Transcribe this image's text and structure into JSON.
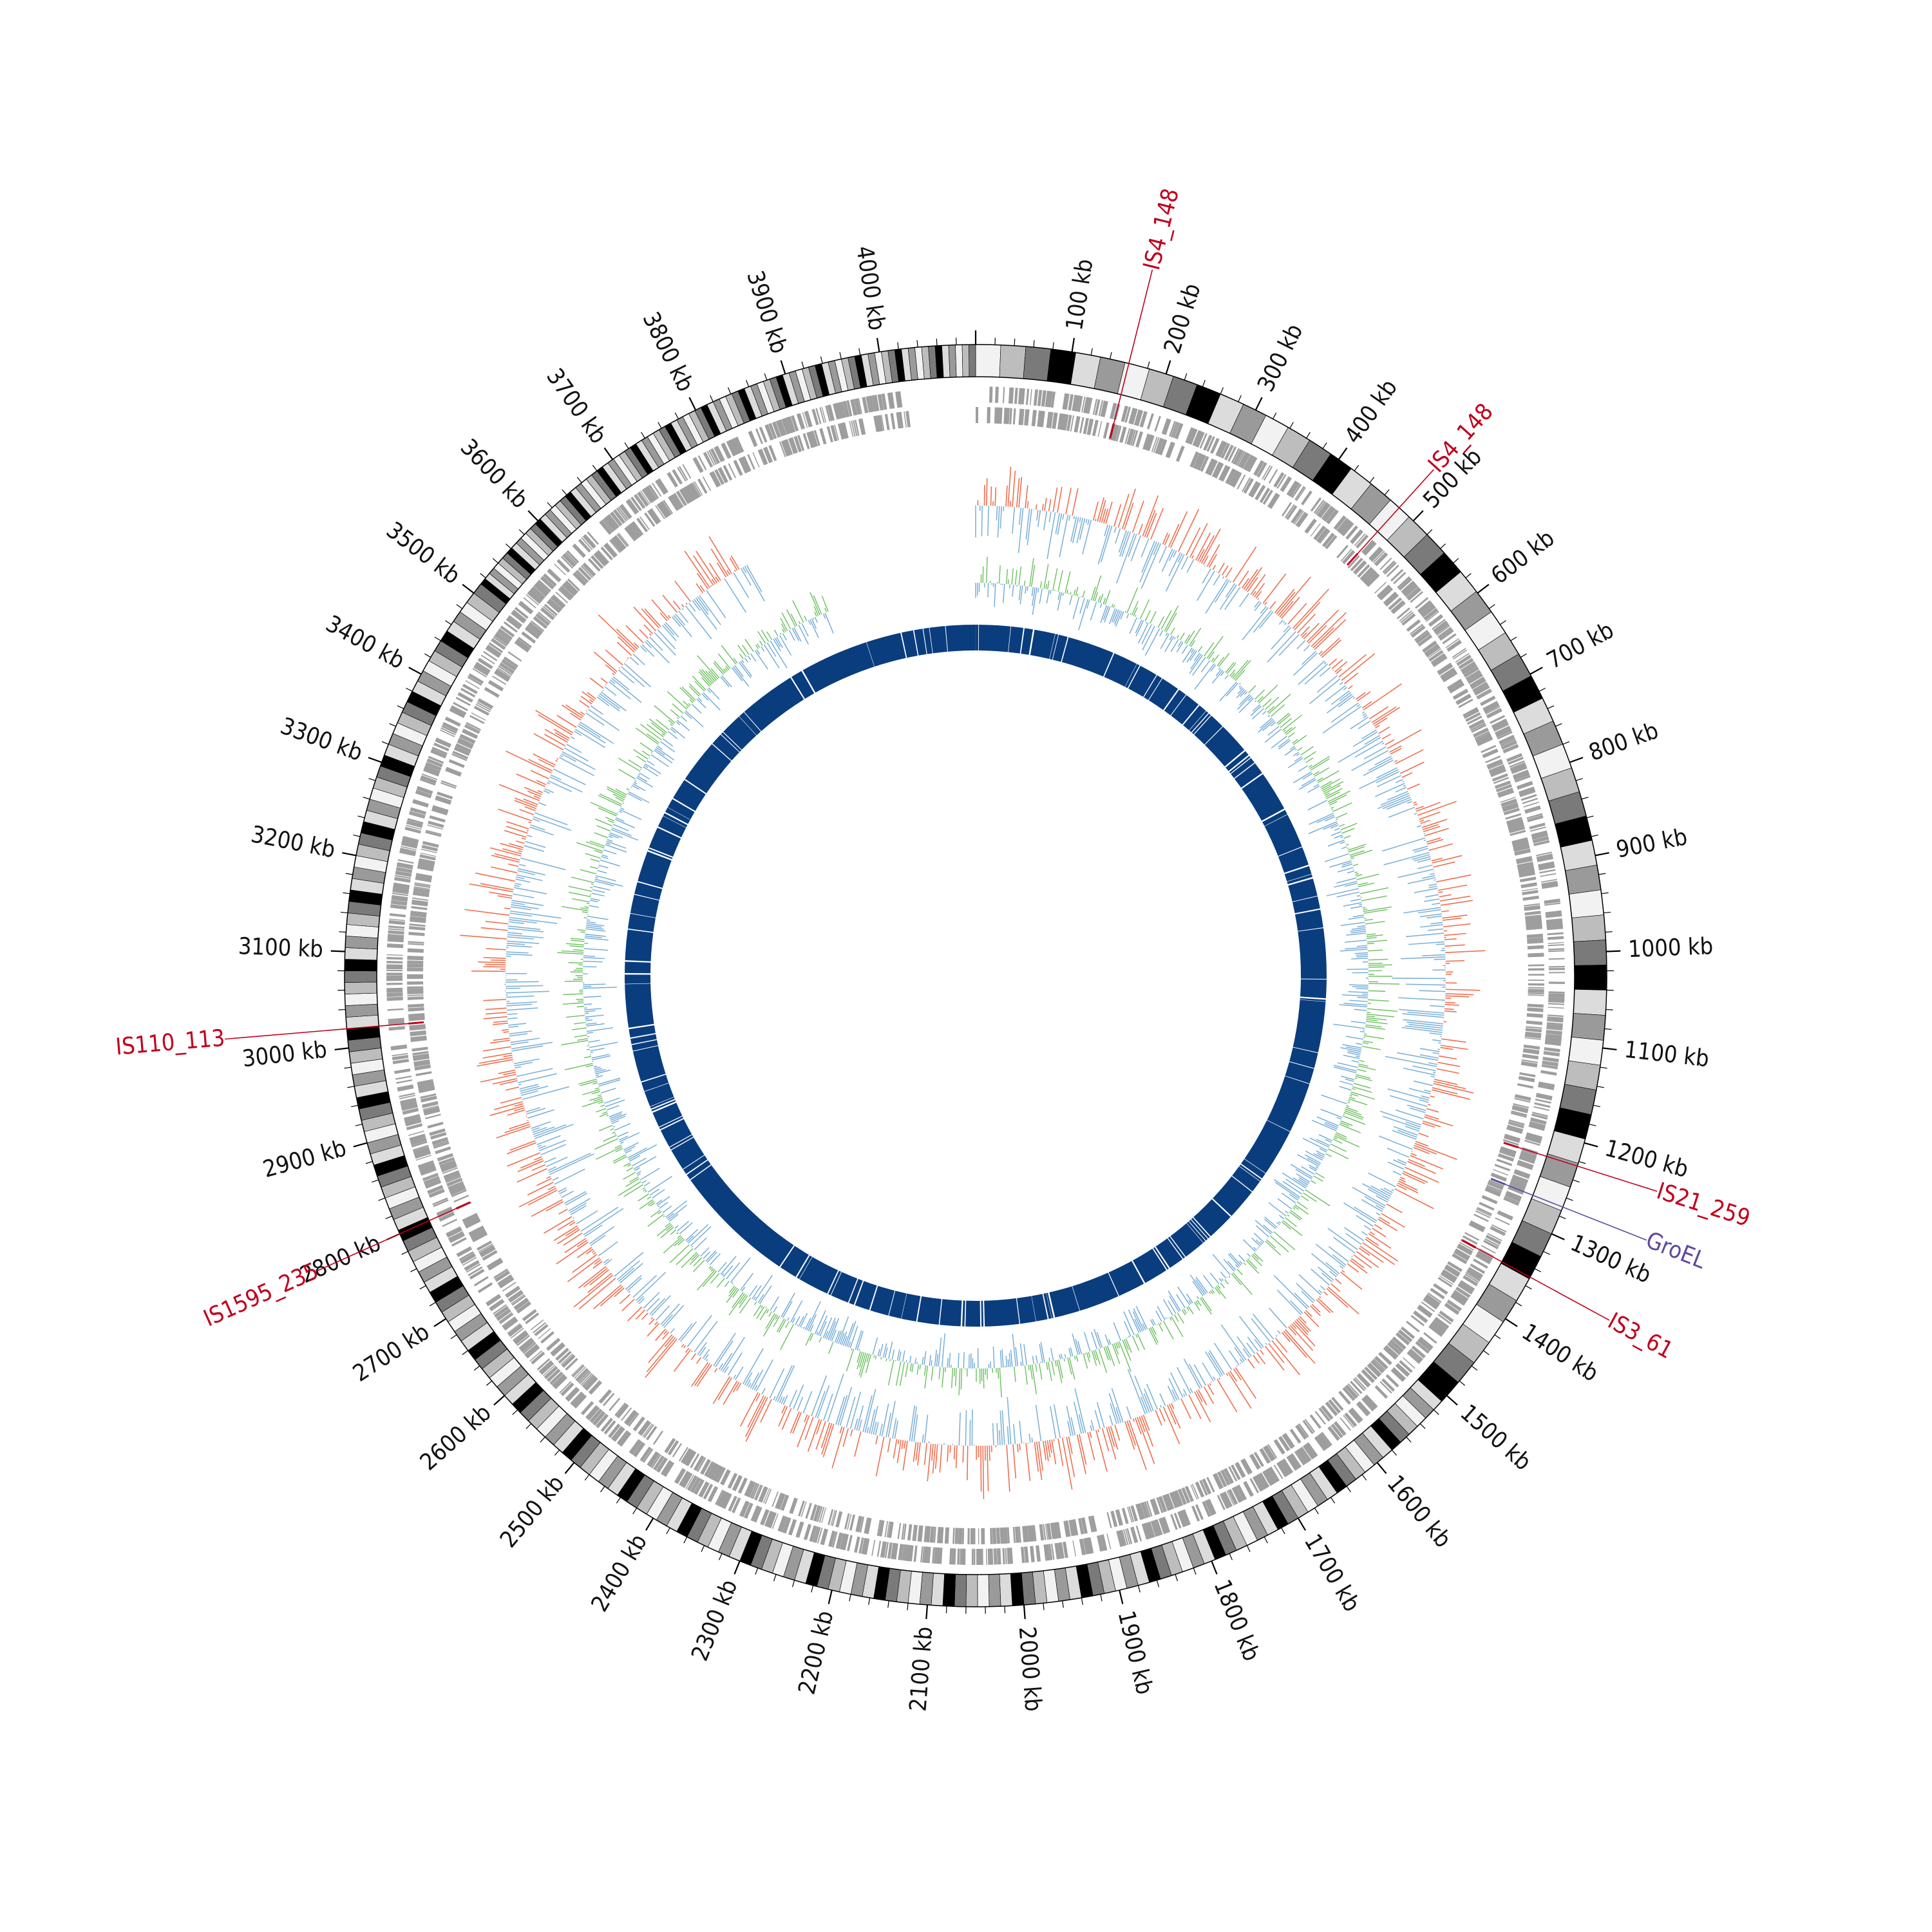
{
  "genome": {
    "unit": "kb",
    "length_kb": 4100,
    "tick_labels": [
      {
        "kb": 100,
        "label": "100 kb"
      },
      {
        "kb": 200,
        "label": "200 kb"
      },
      {
        "kb": 300,
        "label": "300 kb"
      },
      {
        "kb": 400,
        "label": "400 kb"
      },
      {
        "kb": 500,
        "label": "500 kb"
      },
      {
        "kb": 600,
        "label": "600 kb"
      },
      {
        "kb": 700,
        "label": "700 kb"
      },
      {
        "kb": 800,
        "label": "800 kb"
      },
      {
        "kb": 900,
        "label": "900 kb"
      },
      {
        "kb": 1000,
        "label": "1000 kb"
      },
      {
        "kb": 1100,
        "label": "1100 kb"
      },
      {
        "kb": 1200,
        "label": "1200 kb"
      },
      {
        "kb": 1300,
        "label": "1300 kb"
      },
      {
        "kb": 1400,
        "label": "1400 kb"
      },
      {
        "kb": 1500,
        "label": "1500 kb"
      },
      {
        "kb": 1600,
        "label": "1600 kb"
      },
      {
        "kb": 1700,
        "label": "1700 kb"
      },
      {
        "kb": 1800,
        "label": "1800 kb"
      },
      {
        "kb": 1900,
        "label": "1900 kb"
      },
      {
        "kb": 2000,
        "label": "2000 kb"
      },
      {
        "kb": 2100,
        "label": "2100 kb"
      },
      {
        "kb": 2200,
        "label": "2200 kb"
      },
      {
        "kb": 2300,
        "label": "2300 kb"
      },
      {
        "kb": 2400,
        "label": "2400 kb"
      },
      {
        "kb": 2500,
        "label": "2500 kb"
      },
      {
        "kb": 2600,
        "label": "2600 kb"
      },
      {
        "kb": 2700,
        "label": "2700 kb"
      },
      {
        "kb": 2800,
        "label": "2800 kb"
      },
      {
        "kb": 2900,
        "label": "2900 kb"
      },
      {
        "kb": 3000,
        "label": "3000 kb"
      },
      {
        "kb": 3100,
        "label": "3100 kb"
      },
      {
        "kb": 3200,
        "label": "3200 kb"
      },
      {
        "kb": 3300,
        "label": "3300 kb"
      },
      {
        "kb": 3400,
        "label": "3400 kb"
      },
      {
        "kb": 3500,
        "label": "3500 kb"
      },
      {
        "kb": 3600,
        "label": "3600 kb"
      },
      {
        "kb": 3700,
        "label": "3700 kb"
      },
      {
        "kb": 3800,
        "label": "3800 kb"
      },
      {
        "kb": 3900,
        "label": "3900 kb"
      },
      {
        "kb": 4000,
        "label": "4000 kb"
      }
    ]
  },
  "features": [
    {
      "label": "IS4_148",
      "kb": 160,
      "color": "#c0001c"
    },
    {
      "label": "IS4_148",
      "kb": 480,
      "color": "#c0001c"
    },
    {
      "label": "IS21_259",
      "kb": 1225,
      "color": "#c0001c"
    },
    {
      "label": "GroEL",
      "kb": 1270,
      "color": "#5b4a9c"
    },
    {
      "label": "IS3_61",
      "kb": 1350,
      "color": "#c0001c"
    },
    {
      "label": "IS1595_235",
      "kb": 2800,
      "color": "#c0001c"
    },
    {
      "label": "IS110_113",
      "kb": 3020,
      "color": "#c0001c"
    }
  ],
  "colors": {
    "ideogram_shades": [
      "#f2f2f2",
      "#bdbdbd",
      "#7a7a7a",
      "#000000",
      "#dcdcdc",
      "#9a9a9a"
    ],
    "gene_tracks": "#9e9e9e",
    "skew_positive": "#ef6f4f",
    "skew_negative": "#7fb3d8",
    "content_green": "#6cbf5e",
    "content_blue": "#6fa9d6",
    "inner_band": "#0a3d7e"
  }
}
